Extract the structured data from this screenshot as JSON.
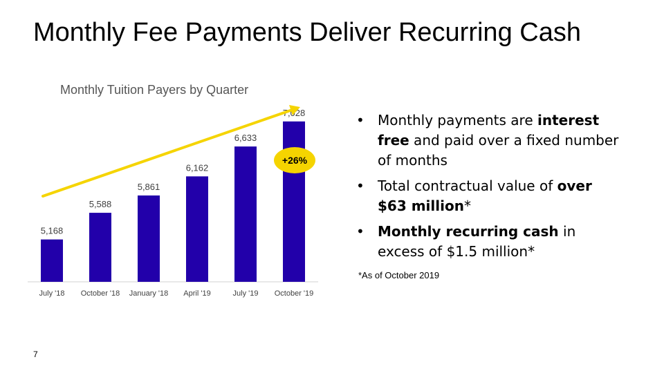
{
  "slide": {
    "title": "Monthly Fee Payments Deliver Recurring Cash",
    "page_number": "7",
    "footnote": "*As of October 2019"
  },
  "bullets": [
    {
      "parts": [
        {
          "text": "Monthly payments are ",
          "bold": false
        },
        {
          "text": "interest free",
          "bold": true
        },
        {
          "text": " and paid over a fixed number of months",
          "bold": false
        }
      ]
    },
    {
      "parts": [
        {
          "text": "Total contractual value of ",
          "bold": false
        },
        {
          "text": "over $63 million",
          "bold": true
        },
        {
          "text": "*",
          "bold": false
        }
      ]
    },
    {
      "parts": [
        {
          "text": "Monthly recurring cash",
          "bold": true
        },
        {
          "text": " in excess of $1.5 million*",
          "bold": false
        }
      ]
    }
  ],
  "bullet_symbol": "•",
  "chart_data": {
    "type": "bar",
    "title": "Monthly Tuition Payers by Quarter",
    "categories": [
      "July '18",
      "October '18",
      "January '18",
      "April '19",
      "July '19",
      "October '19"
    ],
    "values": [
      5168,
      5588,
      5861,
      6162,
      6633,
      7028
    ],
    "value_labels": [
      "5,168",
      "5,588",
      "5,861",
      "6,162",
      "6,633",
      "7,028"
    ],
    "ylim": [
      4500,
      7200
    ],
    "bar_color": "#2200aa",
    "trend_arrow_color": "#f5d400",
    "badge": {
      "text": "+26%",
      "color": "#f5d400"
    },
    "grid": false,
    "legend": "none"
  }
}
